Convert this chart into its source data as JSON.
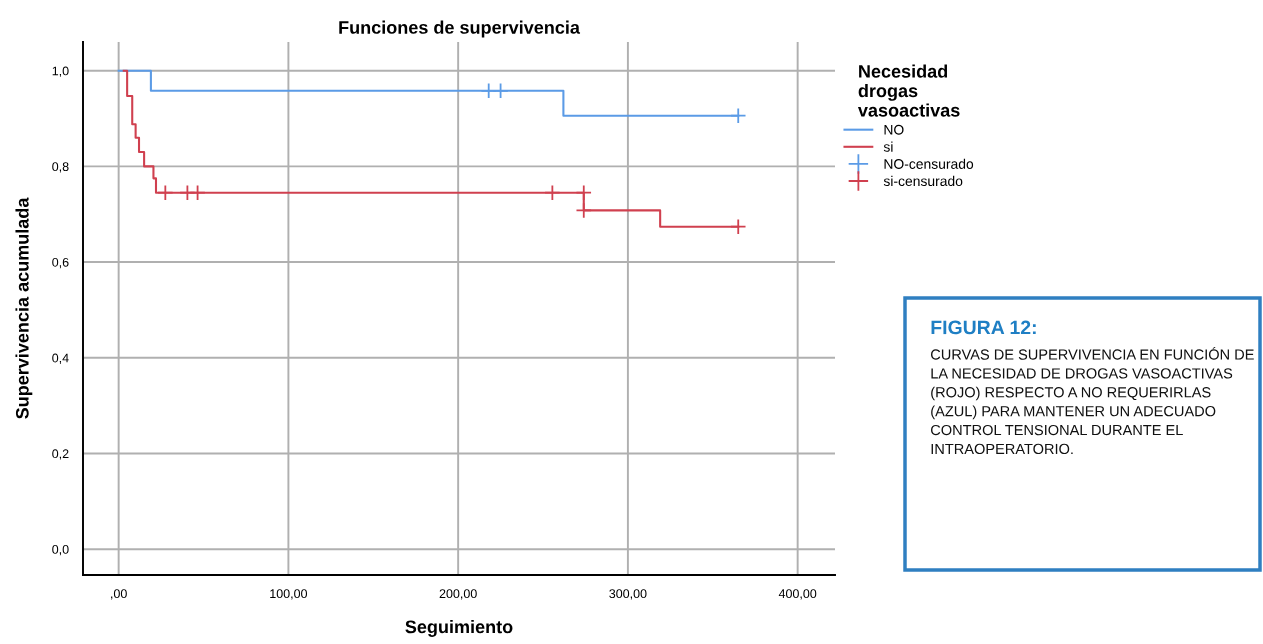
{
  "chart_data": {
    "type": "step",
    "title": "Funciones de supervivencia",
    "xlabel": "Seguimiento",
    "ylabel": "Supervivencia acumulada",
    "legend_title": "Necesidad\ndrogas\nvasoactivas",
    "series": [
      {
        "name": "NO",
        "color": "#5b9be6",
        "x": [
          0,
          19,
          262,
          365
        ],
        "values": [
          1.0,
          0.958,
          0.906,
          0.906
        ]
      },
      {
        "name": "si",
        "color": "#d0404f",
        "x": [
          3,
          5,
          8,
          10,
          12,
          15,
          20.5,
          22,
          274,
          319,
          365
        ],
        "values": [
          1.0,
          0.947,
          0.888,
          0.86,
          0.83,
          0.8,
          0.775,
          0.745,
          0.708,
          0.674,
          0.674
        ]
      },
      {
        "name": "NO-censurado",
        "type": "scatter",
        "marker": "cross",
        "color": "#5b9be6",
        "x": [
          218,
          225,
          365
        ],
        "values": [
          0.958,
          0.958,
          0.906
        ]
      },
      {
        "name": "si-censurado",
        "type": "scatter",
        "marker": "cross",
        "color": "#d0404f",
        "x": [
          27.5,
          40.5,
          46.5,
          255.5,
          274,
          274,
          365
        ],
        "values": [
          0.745,
          0.745,
          0.745,
          0.745,
          0.745,
          0.708,
          0.674
        ]
      }
    ],
    "xlim": [
      -21,
      422
    ],
    "ylim": [
      -0.054,
      1.06
    ],
    "xticks": [
      {
        "value": 0,
        "label": ",00"
      },
      {
        "value": 100,
        "label": "100,00"
      },
      {
        "value": 200,
        "label": "200,00"
      },
      {
        "value": 300,
        "label": "300,00"
      },
      {
        "value": 400,
        "label": "400,00"
      }
    ],
    "yticks": [
      {
        "value": 0,
        "label": "0,0"
      },
      {
        "value": 0.2,
        "label": "0,2"
      },
      {
        "value": 0.4,
        "label": "0,4"
      },
      {
        "value": 0.6,
        "label": "0,6"
      },
      {
        "value": 0.8,
        "label": "0,8"
      },
      {
        "value": 1.0,
        "label": "1,0"
      }
    ],
    "grid": true,
    "legend": "top right",
    "line_style": "solid",
    "annotations": [
      "FIGURA 12:",
      "CURVAS DE SUPERVIVENCIA EN FUNCIÓN DE LA NECESIDAD DE DROGAS VASOACTIVAS (ROJO) RESPECTO A NO REQUERIRLAS (AZUL) PARA MANTENER UN ADECUADO CONTROL TENSIONAL DURANTE EL INTRAOPERATORIO."
    ]
  }
}
